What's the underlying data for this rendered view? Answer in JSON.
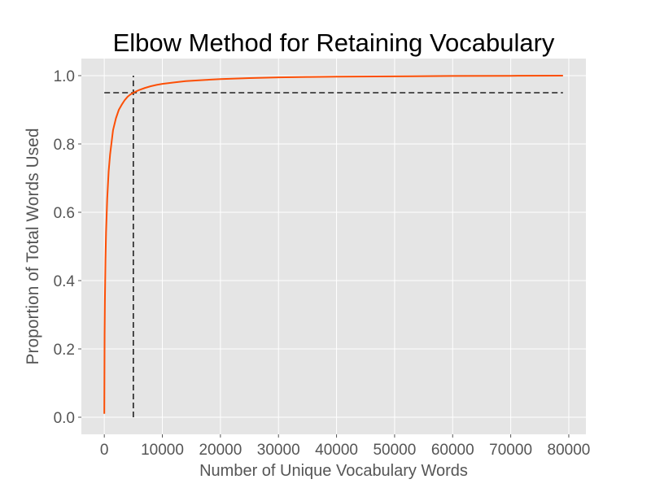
{
  "chart_data": {
    "type": "line",
    "title": "Elbow Method for Retaining Vocabulary",
    "xlabel": "Number of Unique Vocabulary Words",
    "ylabel": "Proportion of Total Words Used",
    "xlim": [
      -3950,
      82950
    ],
    "ylim": [
      -0.05,
      1.05
    ],
    "x_ticks": [
      0,
      10000,
      20000,
      30000,
      40000,
      50000,
      60000,
      70000,
      80000
    ],
    "y_ticks": [
      0.0,
      0.2,
      0.4,
      0.6,
      0.8,
      1.0
    ],
    "x_tick_labels": [
      "0",
      "10000",
      "20000",
      "30000",
      "40000",
      "50000",
      "60000",
      "70000",
      "80000"
    ],
    "y_tick_labels": [
      "0.0",
      "0.2",
      "0.4",
      "0.6",
      "0.8",
      "1.0"
    ],
    "grid": true,
    "style": "ggplot",
    "colors": {
      "background": "#e5e5e5",
      "grid": "#ffffff",
      "line": "#fc4f06",
      "reference": "#222222"
    },
    "series": [
      {
        "x": [
          0,
          50,
          100,
          200,
          300,
          500,
          750,
          1000,
          1500,
          2000,
          2500,
          3000,
          3500,
          4000,
          4500,
          5000,
          6000,
          7000,
          8000,
          9000,
          10000,
          12000,
          14000,
          16000,
          18000,
          20000,
          25000,
          30000,
          35000,
          40000,
          50000,
          60000,
          70000,
          79000
        ],
        "values": [
          0.01,
          0.24,
          0.34,
          0.46,
          0.54,
          0.64,
          0.72,
          0.77,
          0.84,
          0.875,
          0.9,
          0.915,
          0.928,
          0.938,
          0.945,
          0.95,
          0.958,
          0.964,
          0.969,
          0.973,
          0.976,
          0.98,
          0.984,
          0.986,
          0.988,
          0.99,
          0.993,
          0.995,
          0.996,
          0.997,
          0.998,
          0.999,
          0.9995,
          1.0
        ]
      }
    ],
    "reference_lines": [
      {
        "orientation": "horizontal",
        "y": 0.95,
        "x_range": [
          0,
          79000
        ],
        "style": "dashed"
      },
      {
        "orientation": "vertical",
        "x": 5000,
        "y_range": [
          0.0,
          1.0
        ],
        "style": "dashed"
      }
    ]
  }
}
